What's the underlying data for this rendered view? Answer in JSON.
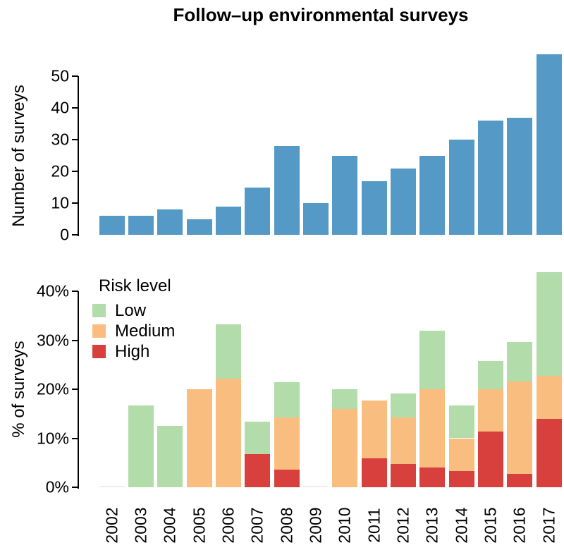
{
  "title": "Follow–up environmental surveys",
  "colors": {
    "bar_blue": "#5599c6",
    "low_green": "#b2dcaa",
    "medium_orange": "#f9be7f",
    "high_red": "#d8403e",
    "axis_black": "#000000",
    "zero_bar": "#ececec"
  },
  "top_chart": {
    "ylabel": "Number of surveys",
    "ytick_labels": [
      "0",
      "10",
      "20",
      "30",
      "40",
      "50"
    ],
    "ytick_values": [
      0,
      10,
      20,
      30,
      40,
      50
    ]
  },
  "bottom_chart": {
    "ylabel": "% of surveys",
    "ytick_labels": [
      "0%",
      "10%",
      "20%",
      "30%",
      "40%"
    ],
    "ytick_values": [
      0,
      10,
      20,
      30,
      40
    ],
    "legend": {
      "title": "Risk level",
      "items": [
        {
          "label": "Low",
          "color_key": "low_green"
        },
        {
          "label": "Medium",
          "color_key": "medium_orange"
        },
        {
          "label": "High",
          "color_key": "high_red"
        }
      ]
    }
  },
  "chart_data": [
    {
      "type": "bar",
      "title": "Follow–up environmental surveys",
      "ylabel": "Number of surveys",
      "categories": [
        "2002",
        "2003",
        "2004",
        "2005",
        "2006",
        "2007",
        "2008",
        "2009",
        "2010",
        "2011",
        "2012",
        "2013",
        "2014",
        "2015",
        "2016",
        "2017"
      ],
      "values": [
        6,
        6,
        8,
        5,
        9,
        15,
        28,
        10,
        25,
        17,
        21,
        25,
        30,
        36,
        37,
        57
      ],
      "ylim": [
        0,
        57
      ],
      "yticks": [
        0,
        10,
        20,
        30,
        40,
        50
      ],
      "grid": false,
      "bar_color_key": "bar_blue"
    },
    {
      "type": "bar",
      "stacked": true,
      "ylabel": "% of surveys",
      "unit": "%",
      "categories": [
        "2002",
        "2003",
        "2004",
        "2005",
        "2006",
        "2007",
        "2008",
        "2009",
        "2010",
        "2011",
        "2012",
        "2013",
        "2014",
        "2015",
        "2016",
        "2017"
      ],
      "series": [
        {
          "name": "High",
          "color_key": "high_red",
          "values": [
            0,
            0,
            0,
            0,
            0,
            6.7,
            3.6,
            0,
            0,
            5.9,
            4.8,
            4.0,
            3.3,
            11.4,
            2.7,
            14.0
          ]
        },
        {
          "name": "Medium",
          "color_key": "medium_orange",
          "values": [
            0,
            0,
            0,
            20,
            22.2,
            0,
            10.7,
            0,
            16,
            11.8,
            9.5,
            16.0,
            6.7,
            8.6,
            18.9,
            8.8
          ]
        },
        {
          "name": "Low",
          "color_key": "low_green",
          "values": [
            0,
            16.7,
            12.5,
            0,
            11.1,
            6.7,
            7.1,
            0,
            4,
            0,
            4.8,
            12.0,
            6.7,
            5.7,
            8.1,
            21.1
          ]
        }
      ],
      "ylim": [
        0,
        44
      ],
      "yticks": [
        0,
        10,
        20,
        30,
        40
      ],
      "grid": false,
      "legend_position": "top-left",
      "legend_title": "Risk level"
    }
  ]
}
